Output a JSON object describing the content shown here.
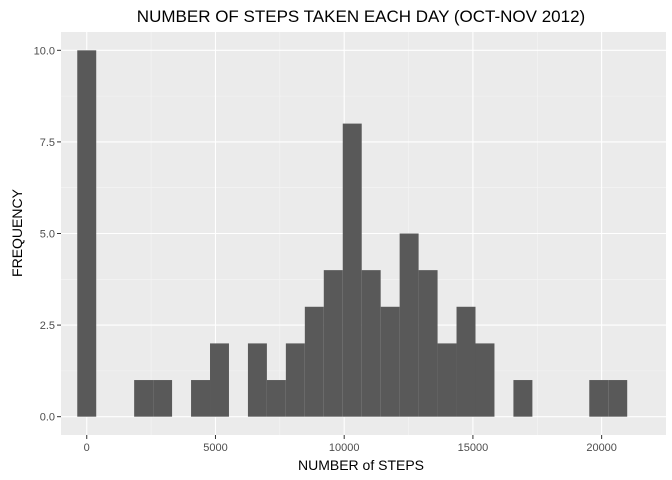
{
  "chart_data": {
    "type": "bar",
    "title": "NUMBER OF STEPS TAKEN EACH DAY (OCT-NOV 2012)",
    "xlabel": "NUMBER of STEPS",
    "ylabel": "FREQUENCY",
    "xlim": [
      -1000,
      22500
    ],
    "ylim": [
      -0.5,
      10.5
    ],
    "x_ticks": [
      0,
      5000,
      10000,
      15000,
      20000
    ],
    "x_tick_labels": [
      "0",
      "5000",
      "10000",
      "15000",
      "20000"
    ],
    "y_ticks": [
      0,
      2.5,
      5,
      7.5,
      10
    ],
    "y_tick_labels": [
      "0.0",
      "2.5",
      "5.0",
      "7.5",
      "10.0"
    ],
    "bin_width": 736.6,
    "bin_centers": [
      0,
      736.6,
      1473.2,
      2209.8,
      2946.4,
      3683,
      4419.6,
      5156.2,
      5892.8,
      6629.4,
      7366,
      8102.6,
      8839.2,
      9575.8,
      10312.4,
      11049,
      11785.6,
      12522.2,
      13258.8,
      13995.4,
      14732,
      15468.6,
      16205.2,
      16941.8,
      17678.4,
      18415,
      19151.6,
      19888.2,
      20624.8
    ],
    "counts": [
      10,
      0,
      0,
      1,
      1,
      0,
      1,
      2,
      0,
      2,
      1,
      2,
      3,
      4,
      8,
      4,
      3,
      5,
      4,
      2,
      3,
      2,
      0,
      1,
      0,
      0,
      0,
      1,
      1
    ],
    "grid": true,
    "legend": "none",
    "colors": {
      "panel_background": "#ebebeb",
      "grid_major": "#ffffff",
      "grid_minor": "#f5f5f5",
      "bar_fill": "#595959",
      "tick_text": "#4d4d4d",
      "tick_mark": "#333333"
    }
  }
}
